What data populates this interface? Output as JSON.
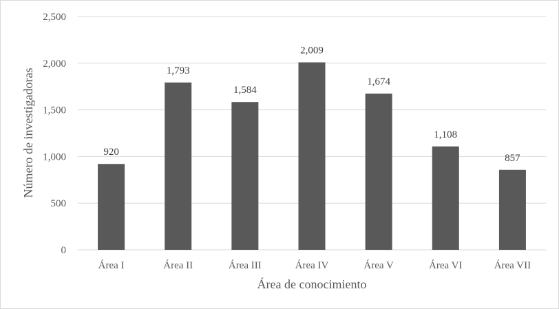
{
  "chart_data": {
    "type": "bar",
    "categories": [
      "Área I",
      "Área II",
      "Área III",
      "Área IV",
      "Área V",
      "Área VI",
      "Área VII"
    ],
    "values": [
      920,
      1793,
      1584,
      2009,
      1674,
      1108,
      857
    ],
    "data_labels": [
      "920",
      "1,793",
      "1,584",
      "2,009",
      "1,674",
      "1,108",
      "857"
    ],
    "title": "",
    "xlabel": "Área de conocimiento",
    "ylabel": "Número de investigadoras",
    "ylim": [
      0,
      2500
    ],
    "yticks": [
      0,
      500,
      1000,
      1500,
      2000,
      2500
    ],
    "ytick_labels": [
      "0",
      "500",
      "1,000",
      "1,500",
      "2,000",
      "2,500"
    ],
    "grid": true,
    "legend": "none",
    "colors": {
      "bar": "#595959",
      "grid": "#d9d9d9",
      "text": "#595959"
    }
  }
}
